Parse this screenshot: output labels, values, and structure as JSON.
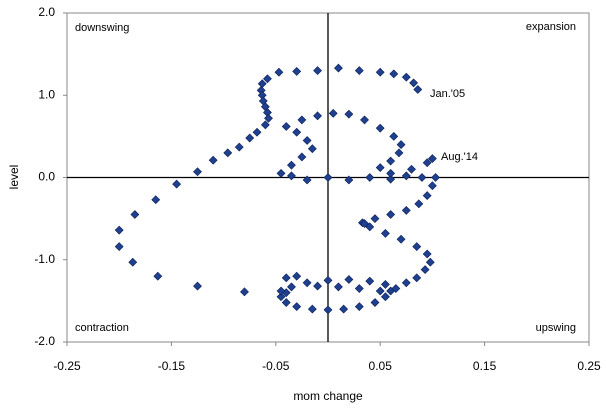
{
  "chart_data": {
    "type": "scatter",
    "xlabel": "mom change",
    "ylabel": "level",
    "quadrant_labels": [
      "downswing",
      "expansion",
      "contraction",
      "upswing"
    ],
    "annotations": [
      "Jan.'05",
      "Aug.'14"
    ],
    "color": "#1f3f8f",
    "xlim": [
      -0.25,
      0.25
    ],
    "xticks": [
      -0.25,
      -0.15,
      -0.05,
      0.05,
      0.15,
      0.25
    ],
    "ylim": [
      -2,
      2
    ],
    "yticks": [
      {
        "value": 2,
        "label": "2.0"
      },
      {
        "value": 1,
        "label": "1.0"
      },
      {
        "value": 0,
        "label": "0.0"
      },
      {
        "value": -1,
        "label": "-1.0"
      },
      {
        "value": -2,
        "label": "-2.0"
      }
    ],
    "x": [
      0.086,
      0.082,
      0.075,
      0.063,
      0.05,
      0.03,
      0.01,
      -0.01,
      -0.03,
      -0.047,
      -0.058,
      -0.063,
      -0.064,
      -0.063,
      -0.062,
      -0.06,
      -0.058,
      -0.057,
      -0.06,
      -0.068,
      -0.075,
      -0.085,
      -0.096,
      -0.11,
      -0.125,
      -0.145,
      -0.165,
      -0.185,
      -0.2,
      -0.2,
      -0.187,
      -0.163,
      -0.125,
      -0.08,
      -0.04,
      -0.045,
      -0.04,
      -0.03,
      -0.015,
      0.0,
      0.015,
      0.03,
      0.045,
      0.055,
      0.06,
      0.055,
      0.04,
      0.02,
      0.0,
      -0.02,
      -0.035,
      -0.045,
      -0.04,
      -0.03,
      -0.01,
      0.01,
      0.03,
      0.05,
      0.065,
      0.075,
      0.085,
      0.093,
      0.098,
      0.095,
      0.085,
      0.07,
      0.055,
      0.04,
      0.033,
      0.035,
      0.045,
      0.06,
      0.075,
      0.087,
      0.095,
      0.1,
      0.103,
      0.09,
      0.075,
      0.06,
      0.04,
      0.02,
      0.0,
      -0.02,
      -0.035,
      -0.045,
      -0.035,
      -0.025,
      -0.015,
      -0.02,
      -0.03,
      -0.04,
      -0.025,
      -0.01,
      0.005,
      0.02,
      0.035,
      0.05,
      0.063,
      0.07,
      0.068,
      0.06,
      0.05,
      0.06,
      0.08,
      0.095,
      0.1
    ],
    "values": [
      1.07,
      1.15,
      1.22,
      1.26,
      1.28,
      1.3,
      1.33,
      1.3,
      1.29,
      1.28,
      1.2,
      1.14,
      1.06,
      1.0,
      0.93,
      0.86,
      0.79,
      0.72,
      0.64,
      0.55,
      0.48,
      0.37,
      0.3,
      0.21,
      0.07,
      -0.08,
      -0.27,
      -0.45,
      -0.64,
      -0.84,
      -1.03,
      -1.2,
      -1.32,
      -1.39,
      -1.4,
      -1.45,
      -1.52,
      -1.57,
      -1.6,
      -1.61,
      -1.6,
      -1.57,
      -1.52,
      -1.45,
      -1.38,
      -1.3,
      -1.26,
      -1.24,
      -1.25,
      -1.28,
      -1.33,
      -1.38,
      -1.22,
      -1.2,
      -1.32,
      -1.33,
      -1.35,
      -1.38,
      -1.35,
      -1.28,
      -1.22,
      -1.12,
      -1.03,
      -0.93,
      -0.84,
      -0.75,
      -0.68,
      -0.6,
      -0.55,
      -0.56,
      -0.5,
      -0.45,
      -0.4,
      -0.32,
      -0.22,
      -0.1,
      0.0,
      0.0,
      0.02,
      -0.02,
      0.0,
      -0.03,
      0.0,
      -0.03,
      0.02,
      0.05,
      0.15,
      0.25,
      0.35,
      0.45,
      0.55,
      0.62,
      0.7,
      0.75,
      0.78,
      0.77,
      0.7,
      0.6,
      0.5,
      0.4,
      0.3,
      0.2,
      0.12,
      0.05,
      0.1,
      0.18,
      0.23
    ]
  }
}
